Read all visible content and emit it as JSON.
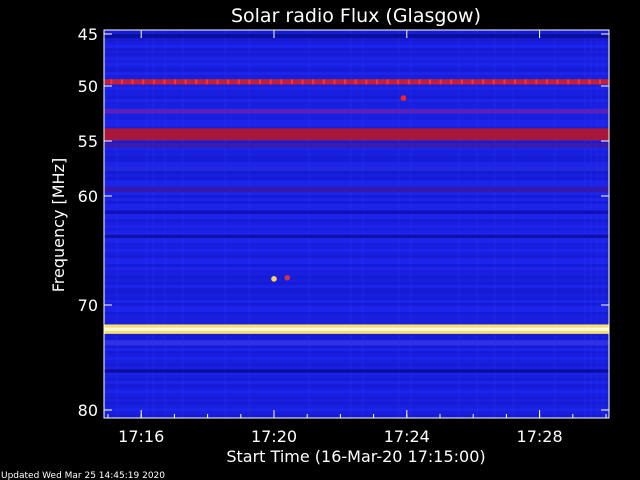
{
  "chart_data": {
    "type": "heatmap",
    "title": "Solar radio Flux (Glasgow)",
    "xlabel": "Start Time (16-Mar-20 17:15:00)",
    "ylabel": "Frequency [MHz]",
    "footer": "Updated Wed Mar 25 14:45:19 2020",
    "x_range_minutes": [
      0,
      15
    ],
    "y_range_mhz": [
      45,
      80
    ],
    "x_ticks": [
      {
        "label": "17:16",
        "minute": 1
      },
      {
        "label": "17:20",
        "minute": 5
      },
      {
        "label": "17:24",
        "minute": 9
      },
      {
        "label": "17:28",
        "minute": 13
      }
    ],
    "y_ticks": [
      {
        "label": "45",
        "mhz": 45
      },
      {
        "label": "50",
        "mhz": 50
      },
      {
        "label": "55",
        "mhz": 55
      },
      {
        "label": "60",
        "mhz": 60
      },
      {
        "label": "70",
        "mhz": 70
      },
      {
        "label": "80",
        "mhz": 80
      }
    ],
    "background_color": "#1a22e6",
    "bands": [
      {
        "mhz": 45.2,
        "width_mhz": 0.4,
        "color": "#0a0f9a",
        "level": "low"
      },
      {
        "mhz": 47.0,
        "width_mhz": 0.3,
        "color": "#1c1cd2",
        "level": "low"
      },
      {
        "mhz": 49.6,
        "width_mhz": 0.5,
        "color": "#c0203a",
        "level": "dotted-interference"
      },
      {
        "mhz": 52.3,
        "width_mhz": 0.4,
        "color": "#5a20b8",
        "level": "medium"
      },
      {
        "mhz": 54.4,
        "width_mhz": 1.1,
        "color": "#a8163a",
        "level": "high"
      },
      {
        "mhz": 55.4,
        "width_mhz": 0.4,
        "color": "#3c1ca8",
        "level": "medium"
      },
      {
        "mhz": 57.5,
        "width_mhz": 0.3,
        "color": "#2828d8",
        "level": "low"
      },
      {
        "mhz": 59.4,
        "width_mhz": 0.5,
        "color": "#3418b0",
        "level": "medium"
      },
      {
        "mhz": 61.5,
        "width_mhz": 0.3,
        "color": "#1010b8",
        "level": "low"
      },
      {
        "mhz": 63.7,
        "width_mhz": 0.3,
        "color": "#1010a8",
        "level": "low"
      },
      {
        "mhz": 72.3,
        "width_mhz": 0.9,
        "color": "#f4e070",
        "level": "very-high"
      },
      {
        "mhz": 73.6,
        "width_mhz": 0.5,
        "color": "#3030e8",
        "level": "medium"
      },
      {
        "mhz": 76.3,
        "width_mhz": 0.3,
        "color": "#0c0c9c",
        "level": "low"
      }
    ],
    "bursts": [
      {
        "minute": 8.9,
        "mhz": 51.1,
        "color": "#ff2020"
      },
      {
        "minute": 5.0,
        "mhz": 67.6,
        "color": "#ffd060"
      },
      {
        "minute": 5.4,
        "mhz": 67.5,
        "color": "#d03050"
      }
    ],
    "interference_mhz": 49.6,
    "interference_color": "#ff3030",
    "interference_interval_minutes": 0.32
  }
}
